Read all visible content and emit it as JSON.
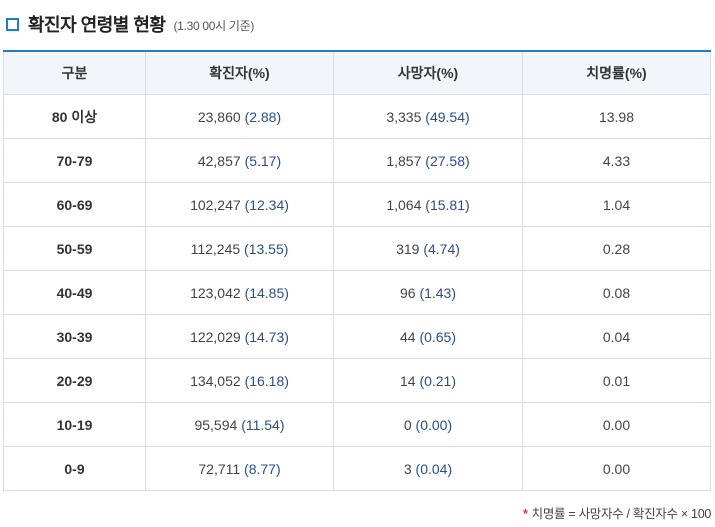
{
  "header": {
    "title": "확진자 연령별 현황",
    "note": "(1.30 00시 기준)"
  },
  "table": {
    "columns": [
      "구분",
      "확진자(%)",
      "사망자(%)",
      "치명률(%)"
    ],
    "rows": [
      {
        "age": "80 이상",
        "cases": "23,860",
        "cases_pct": "(2.88)",
        "deaths": "3,335",
        "deaths_pct": "(49.54)",
        "fatality": "13.98"
      },
      {
        "age": "70-79",
        "cases": "42,857",
        "cases_pct": "(5.17)",
        "deaths": "1,857",
        "deaths_pct": "(27.58)",
        "fatality": "4.33"
      },
      {
        "age": "60-69",
        "cases": "102,247",
        "cases_pct": "(12.34)",
        "deaths": "1,064",
        "deaths_pct": "(15.81)",
        "fatality": "1.04"
      },
      {
        "age": "50-59",
        "cases": "112,245",
        "cases_pct": "(13.55)",
        "deaths": "319",
        "deaths_pct": "(4.74)",
        "fatality": "0.28"
      },
      {
        "age": "40-49",
        "cases": "123,042",
        "cases_pct": "(14.85)",
        "deaths": "96",
        "deaths_pct": "(1.43)",
        "fatality": "0.08"
      },
      {
        "age": "30-39",
        "cases": "122,029",
        "cases_pct": "(14.73)",
        "deaths": "44",
        "deaths_pct": "(0.65)",
        "fatality": "0.04"
      },
      {
        "age": "20-29",
        "cases": "134,052",
        "cases_pct": "(16.18)",
        "deaths": "14",
        "deaths_pct": "(0.21)",
        "fatality": "0.01"
      },
      {
        "age": "10-19",
        "cases": "95,594",
        "cases_pct": "(11.54)",
        "deaths": "0",
        "deaths_pct": "(0.00)",
        "fatality": "0.00"
      },
      {
        "age": "0-9",
        "cases": "72,711",
        "cases_pct": "(8.77)",
        "deaths": "3",
        "deaths_pct": "(0.04)",
        "fatality": "0.00"
      }
    ]
  },
  "footnote": {
    "star": "*",
    "text": "치명률 = 사망자수 / 확진자수 × 100"
  },
  "colors": {
    "accent": "#1f7fc4",
    "value_blue": "#2a4f8c",
    "header_bg": "#f2f6fa",
    "footnote_star": "#d9372b"
  }
}
